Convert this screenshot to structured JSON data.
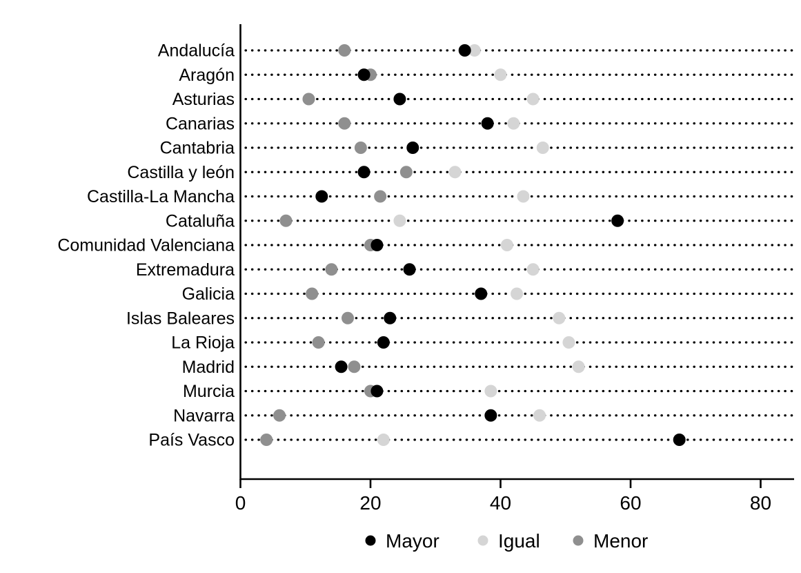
{
  "chart_data": {
    "type": "scatter",
    "subtype": "cleveland-dot-plot",
    "title": "",
    "xlabel": "",
    "ylabel": "",
    "xlim": [
      0,
      85
    ],
    "x_ticks": [
      0,
      20,
      40,
      60,
      80
    ],
    "grid": "dotted-horizontal-leader-lines",
    "legend_position": "bottom-center",
    "categories": [
      "Andalucía",
      "Aragón",
      "Asturias",
      "Canarias",
      "Cantabria",
      "Castilla y león",
      "Castilla-La Mancha",
      "Cataluña",
      "Comunidad Valenciana",
      "Extremadura",
      "Galicia",
      "Islas Baleares",
      "La Rioja",
      "Madrid",
      "Murcia",
      "Navarra",
      "País Vasco"
    ],
    "series": [
      {
        "name": "Mayor",
        "color": "#000000",
        "values": [
          34.5,
          19,
          24.5,
          38,
          26.5,
          19,
          12.5,
          58,
          21,
          26,
          37,
          23,
          22,
          15.5,
          21,
          38.5,
          67.5
        ]
      },
      {
        "name": "Igual",
        "color": "#d5d5d5",
        "values": [
          36,
          40,
          45,
          42,
          46.5,
          33,
          43.5,
          24.5,
          41,
          45,
          42.5,
          49,
          50.5,
          52,
          38.5,
          46,
          22
        ]
      },
      {
        "name": "Menor",
        "color": "#8f8f8f",
        "values": [
          16,
          20,
          10.5,
          16,
          18.5,
          25.5,
          21.5,
          7,
          20,
          14,
          11,
          16.5,
          12,
          17.5,
          20,
          6,
          4
        ]
      }
    ],
    "colors": {
      "axis": "#000000",
      "leader_dots": "#000000",
      "text": "#000000",
      "background": "#ffffff"
    }
  }
}
